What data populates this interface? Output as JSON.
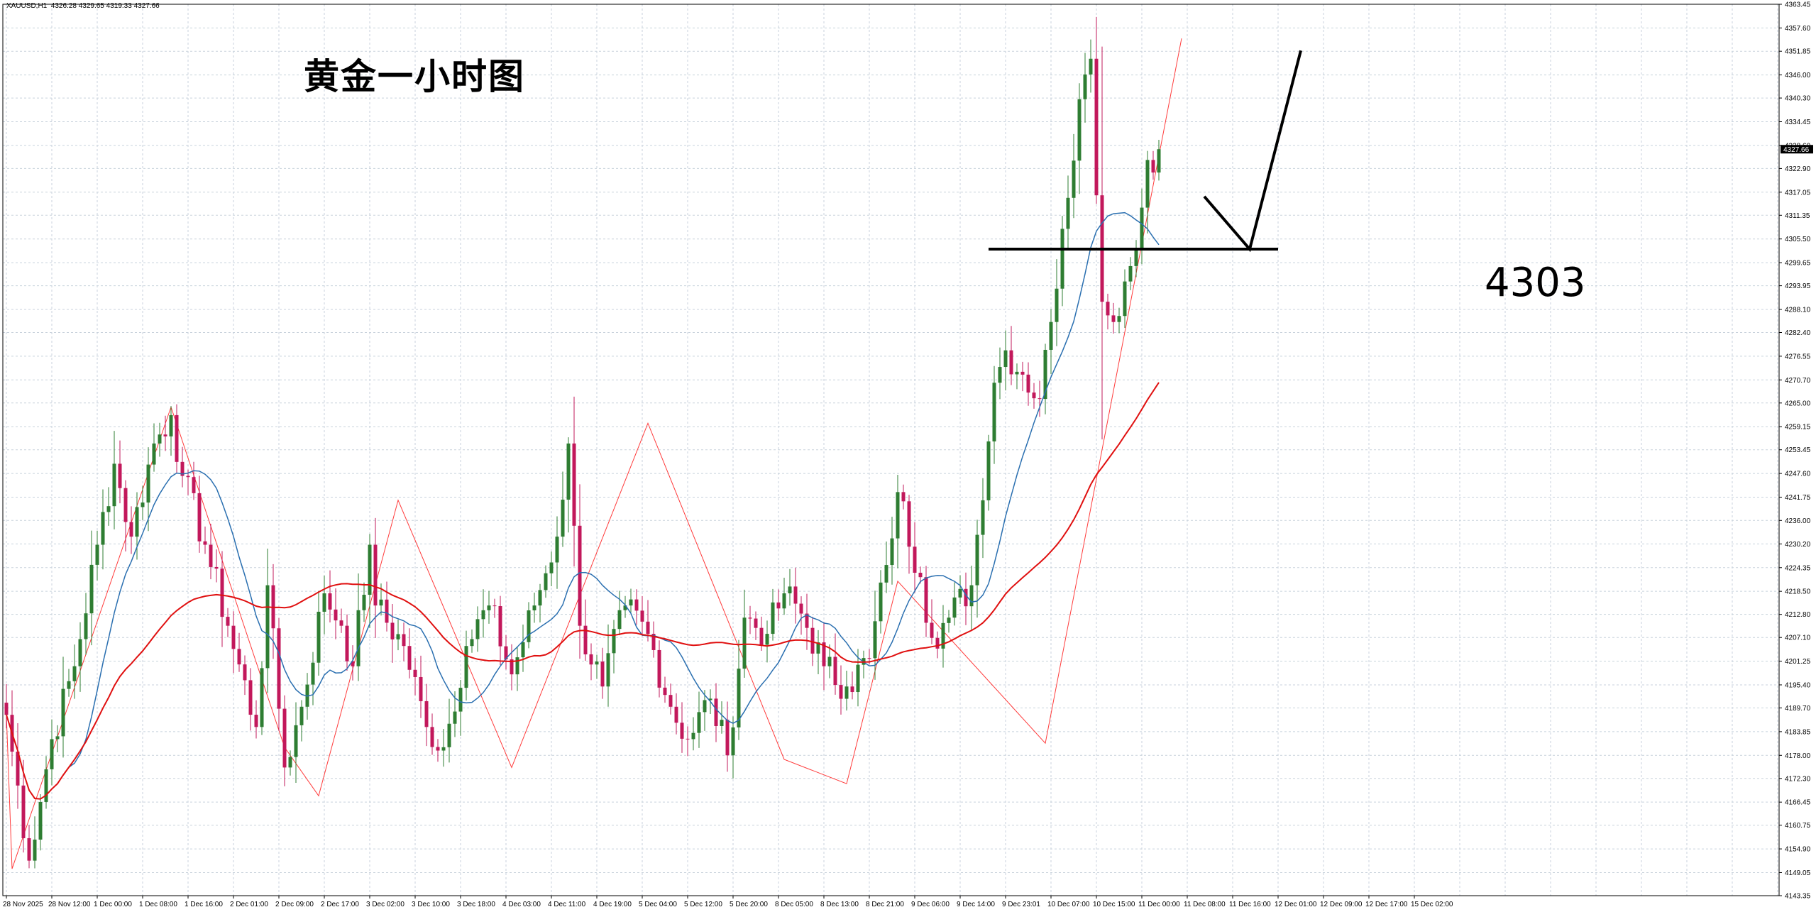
{
  "symbol_info": "XAUUSD,H1  4326.28 4329.65 4319.33 4327.66",
  "annotation": {
    "title": "黄金一小时图",
    "level_text": "4303",
    "level": 4303
  },
  "colors": {
    "bull": "#2e7d32",
    "bear": "#c2185b",
    "ma_fast": "#2a6fb0",
    "ma_slow": "#e01010",
    "zigzag": "#ff3b3b",
    "grid": "#c8d2dc",
    "price_tag_bg": "#000000"
  },
  "chart_data": {
    "type": "candlestick",
    "title": "黄金一小时图",
    "symbol": "XAUUSD,H1",
    "last_price": "4327.66",
    "ylim": [
      4143.35,
      4363.45
    ],
    "y_ticks": [
      "4363.45",
      "4357.60",
      "4351.85",
      "4346.00",
      "4340.30",
      "4334.45",
      "4328.60",
      "4322.90",
      "4317.05",
      "4311.35",
      "4305.50",
      "4299.65",
      "4293.95",
      "4288.10",
      "4282.40",
      "4276.55",
      "4270.70",
      "4265.00",
      "4259.15",
      "4253.45",
      "4247.60",
      "4241.75",
      "4236.00",
      "4230.20",
      "4224.35",
      "4218.50",
      "4212.80",
      "4207.10",
      "4201.25",
      "4195.40",
      "4189.70",
      "4183.85",
      "4178.00",
      "4172.30",
      "4166.45",
      "4160.75",
      "4154.90",
      "4149.05",
      "4143.35"
    ],
    "x_ticks": [
      "28 Nov 2025",
      "28 Nov 12:00",
      "1 Dec 00:00",
      "1 Dec 08:00",
      "1 Dec 16:00",
      "2 Dec 01:00",
      "2 Dec 09:00",
      "2 Dec 17:00",
      "3 Dec 02:00",
      "3 Dec 10:00",
      "3 Dec 18:00",
      "4 Dec 03:00",
      "4 Dec 11:00",
      "4 Dec 19:00",
      "5 Dec 04:00",
      "5 Dec 12:00",
      "5 Dec 20:00",
      "8 Dec 05:00",
      "8 Dec 13:00",
      "8 Dec 21:00",
      "9 Dec 06:00",
      "9 Dec 14:00",
      "9 Dec 23:01",
      "10 Dec 07:00",
      "10 Dec 15:00",
      "11 Dec 00:00",
      "11 Dec 08:00",
      "11 Dec 16:00",
      "12 Dec 01:00",
      "12 Dec 09:00",
      "12 Dec 17:00",
      "15 Dec 02:00"
    ],
    "bars_per_tick": 8,
    "anchors": [
      [
        0,
        4188
      ],
      [
        4,
        4152
      ],
      [
        8,
        4182
      ],
      [
        12,
        4200
      ],
      [
        16,
        4230
      ],
      [
        19,
        4250
      ],
      [
        22,
        4232
      ],
      [
        26,
        4255
      ],
      [
        29,
        4262
      ],
      [
        31,
        4247
      ],
      [
        35,
        4230
      ],
      [
        39,
        4210
      ],
      [
        44,
        4185
      ],
      [
        46,
        4220
      ],
      [
        49,
        4175
      ],
      [
        52,
        4190
      ],
      [
        56,
        4218
      ],
      [
        59,
        4210
      ],
      [
        61,
        4200
      ],
      [
        64,
        4230
      ],
      [
        65,
        4215
      ],
      [
        70,
        4205
      ],
      [
        74,
        4185
      ],
      [
        77,
        4180
      ],
      [
        81,
        4205
      ],
      [
        85,
        4215
      ],
      [
        89,
        4198
      ],
      [
        93,
        4215
      ],
      [
        97,
        4232
      ],
      [
        99,
        4255
      ],
      [
        101,
        4210
      ],
      [
        105,
        4195
      ],
      [
        109,
        4215
      ],
      [
        113,
        4208
      ],
      [
        117,
        4190
      ],
      [
        120,
        4182
      ],
      [
        124,
        4192
      ],
      [
        127,
        4178
      ],
      [
        130,
        4212
      ],
      [
        134,
        4208
      ],
      [
        137,
        4218
      ],
      [
        140,
        4213
      ],
      [
        144,
        4200
      ],
      [
        148,
        4195
      ],
      [
        152,
        4202
      ],
      [
        155,
        4225
      ],
      [
        157,
        4243
      ],
      [
        161,
        4222
      ],
      [
        163,
        4207
      ],
      [
        166,
        4212
      ],
      [
        170,
        4220
      ],
      [
        174,
        4270
      ],
      [
        176,
        4278
      ],
      [
        179,
        4272
      ],
      [
        182,
        4266
      ],
      [
        184,
        4285
      ],
      [
        186,
        4308
      ],
      [
        189,
        4340
      ],
      [
        191,
        4350
      ],
      [
        193,
        4290
      ],
      [
        195,
        4285
      ],
      [
        197,
        4295
      ],
      [
        199,
        4303
      ],
      [
        201,
        4325
      ],
      [
        203,
        4327.66
      ]
    ],
    "zigzag": [
      [
        0,
        4188
      ],
      [
        1,
        4150
      ],
      [
        29,
        4264
      ],
      [
        49,
        4180
      ],
      [
        55,
        4168
      ],
      [
        69,
        4241
      ],
      [
        89,
        4175
      ],
      [
        113,
        4260
      ],
      [
        137,
        4177
      ],
      [
        148,
        4171
      ],
      [
        157,
        4221
      ],
      [
        183,
        4181
      ],
      [
        207,
        4355
      ]
    ],
    "moving_averages": [
      {
        "name": "",
        "color": "#2a6fb0",
        "period": 12
      },
      {
        "name": "",
        "color": "#e01010",
        "period": 48
      }
    ],
    "drawings": {
      "horizontal_line": {
        "price": 4303,
        "from_bar": 173,
        "to_bar": 224
      },
      "arrow_path": [
        [
          211,
          4316
        ],
        [
          219,
          4303
        ],
        [
          228,
          4352
        ]
      ]
    },
    "grid": true
  }
}
